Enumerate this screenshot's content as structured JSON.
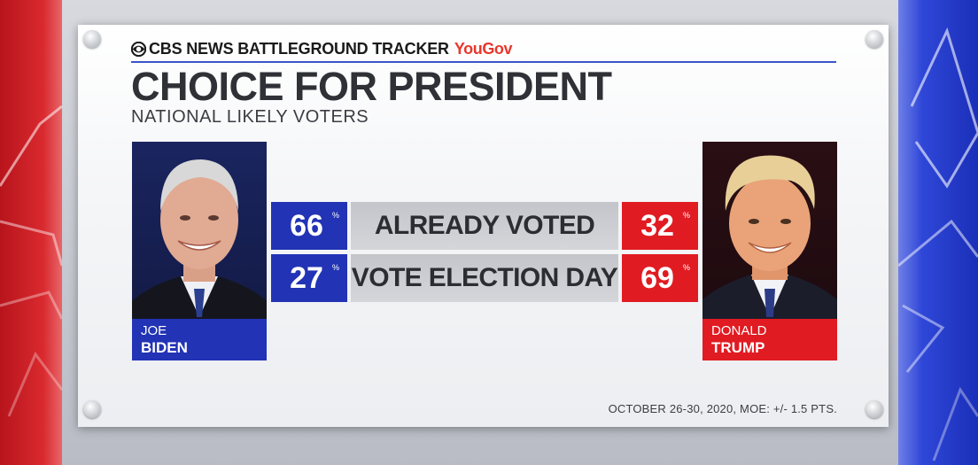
{
  "brand": {
    "network": "CBS NEWS BATTLEGROUND TRACKER",
    "partner": "YouGov",
    "logo_icon": "cbs-eye-icon"
  },
  "colors": {
    "biden_blue": "#2233b5",
    "trump_red": "#e11b22",
    "label_gray": "#c9cbd0",
    "accent_rule": "#3a55c9"
  },
  "chart_data": {
    "type": "table",
    "title": "CHOICE FOR PRESIDENT",
    "subtitle": "NATIONAL LIKELY VOTERS",
    "unit": "%",
    "categories": [
      "ALREADY VOTED",
      "VOTE ELECTION DAY"
    ],
    "series": [
      {
        "name": "JOE BIDEN",
        "first": "JOE",
        "last": "BIDEN",
        "values": [
          66,
          27
        ]
      },
      {
        "name": "DONALD TRUMP",
        "first": "DONALD",
        "last": "TRUMP",
        "values": [
          32,
          69
        ]
      }
    ],
    "footnote": "OCTOBER 26-30, 2020, MOE: +/- 1.5 PTS."
  }
}
